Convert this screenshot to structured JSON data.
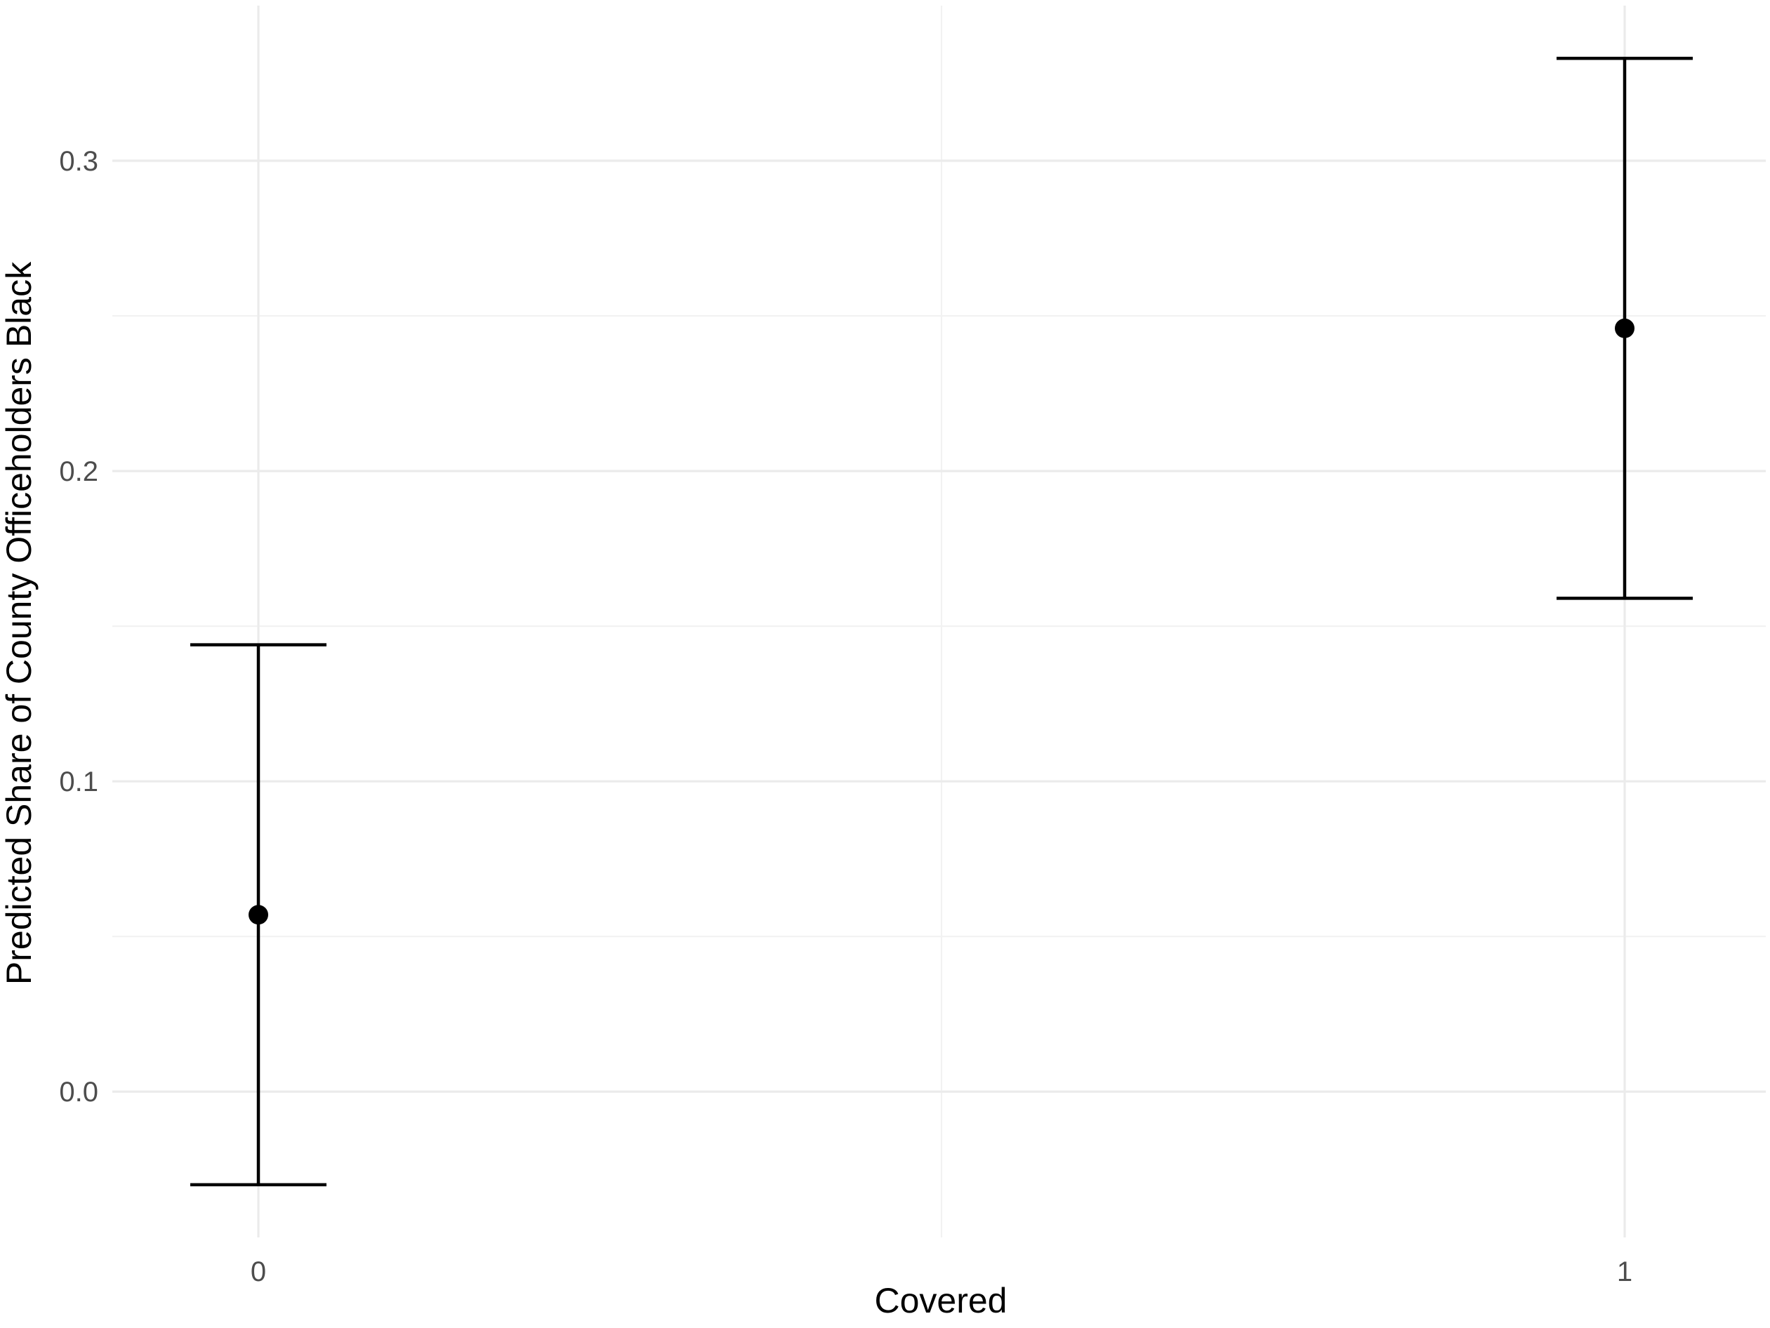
{
  "chart_data": {
    "type": "scatter",
    "title": "",
    "xlabel": "Covered",
    "ylabel": "Predicted Share of County Officeholders Black",
    "categories": [
      "0",
      "1"
    ],
    "estimates": [
      0.057,
      0.246
    ],
    "ci_lower": [
      -0.03,
      0.159
    ],
    "ci_upper": [
      0.144,
      0.333
    ],
    "y_ticks": [
      0.0,
      0.1,
      0.2,
      0.3
    ],
    "y_tick_labels": [
      "0.0",
      "0.1",
      "0.2",
      "0.3"
    ],
    "ylim": [
      -0.047,
      0.35
    ],
    "grid": true,
    "legend": "none"
  },
  "colors": {
    "background": "#ffffff",
    "grid": "#ebebeb",
    "marks": "#000000"
  }
}
